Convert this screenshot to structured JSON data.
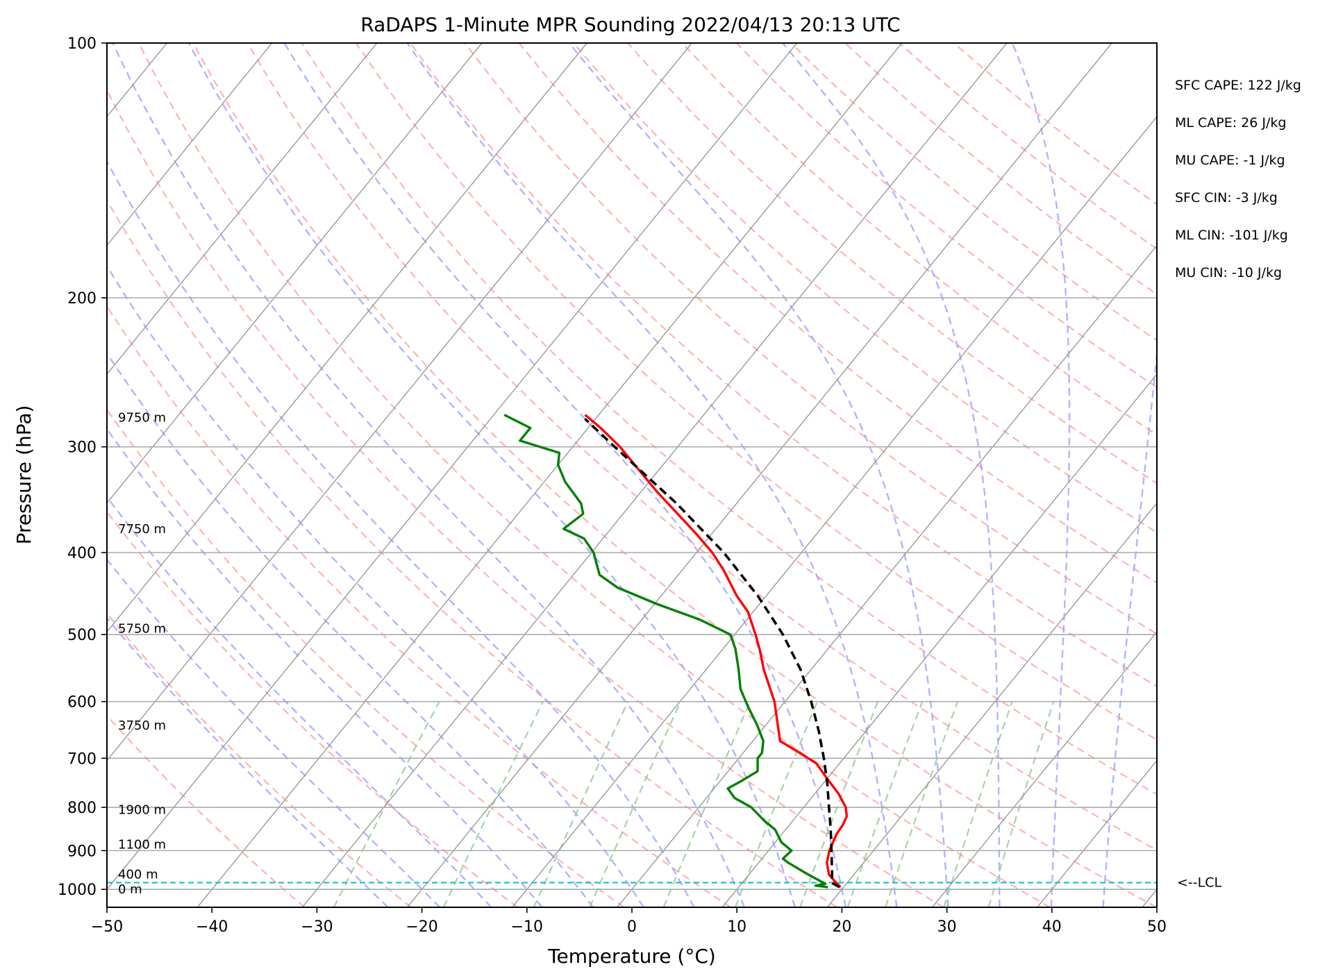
{
  "chart_data": {
    "type": "line",
    "subtype": "skew-t log-p sounding",
    "title": "RaDAPS 1-Minute MPR Sounding 2022/04/13 20:13 UTC",
    "xlabel": "Temperature (°C)",
    "ylabel": "Pressure (hPa)",
    "xlim": [
      -50,
      50
    ],
    "ylim": [
      1050,
      100
    ],
    "y_scale": "log",
    "x_ticks": [
      -50,
      -40,
      -30,
      -20,
      -10,
      0,
      10,
      20,
      30,
      40,
      50
    ],
    "x_tick_labels": [
      "−50",
      "−40",
      "−30",
      "−20",
      "−10",
      "0",
      "10",
      "20",
      "30",
      "40",
      "50"
    ],
    "y_ticks": [
      100,
      200,
      300,
      400,
      500,
      600,
      700,
      800,
      900,
      1000
    ],
    "y_tick_labels": [
      "100",
      "200",
      "300",
      "400",
      "500",
      "600",
      "700",
      "800",
      "900",
      "1000"
    ],
    "grid": true,
    "height_labels": [
      {
        "text": "9750 m",
        "p": 277
      },
      {
        "text": "7750 m",
        "p": 375
      },
      {
        "text": "5750 m",
        "p": 492
      },
      {
        "text": "3750 m",
        "p": 640
      },
      {
        "text": "1900 m",
        "p": 805
      },
      {
        "text": "1100 m",
        "p": 885
      },
      {
        "text": "400 m",
        "p": 960
      },
      {
        "text": "0 m",
        "p": 1000
      }
    ],
    "stats": [
      "SFC CAPE: 122 J/kg",
      "ML CAPE: 26 J/kg",
      "MU CAPE: -1 J/kg",
      "SFC CIN: -3 J/kg",
      "ML CIN: -101 J/kg",
      "MU CIN: -10 J/kg"
    ],
    "lcl": {
      "label": "<--LCL",
      "p": 982,
      "color": "#00bfbf"
    },
    "series": [
      {
        "color": "#ff0000",
        "points": [
          {
            "p": 994,
            "t": 19.7
          },
          {
            "p": 980,
            "t": 18.8
          },
          {
            "p": 960,
            "t": 17.6
          },
          {
            "p": 930,
            "t": 16.5
          },
          {
            "p": 900,
            "t": 15.8
          },
          {
            "p": 860,
            "t": 15.2
          },
          {
            "p": 840,
            "t": 15.1
          },
          {
            "p": 820,
            "t": 14.8
          },
          {
            "p": 800,
            "t": 14.0
          },
          {
            "p": 770,
            "t": 12.2
          },
          {
            "p": 740,
            "t": 10.0
          },
          {
            "p": 710,
            "t": 7.8
          },
          {
            "p": 690,
            "t": 5.4
          },
          {
            "p": 668,
            "t": 2.6
          },
          {
            "p": 600,
            "t": -1.0
          },
          {
            "p": 550,
            "t": -4.5
          },
          {
            "p": 520,
            "t": -6.5
          },
          {
            "p": 500,
            "t": -8.0
          },
          {
            "p": 470,
            "t": -10.5
          },
          {
            "p": 450,
            "t": -12.8
          },
          {
            "p": 420,
            "t": -16.0
          },
          {
            "p": 400,
            "t": -18.5
          },
          {
            "p": 380,
            "t": -21.5
          },
          {
            "p": 360,
            "t": -24.8
          },
          {
            "p": 340,
            "t": -28.3
          },
          {
            "p": 320,
            "t": -31.8
          },
          {
            "p": 300,
            "t": -35.5
          },
          {
            "p": 285,
            "t": -38.8
          },
          {
            "p": 275,
            "t": -41.3
          }
        ]
      },
      {
        "color": "#008000",
        "points": [
          {
            "p": 994,
            "t": 18.5
          },
          {
            "p": 990,
            "t": 17.2
          },
          {
            "p": 985,
            "t": 18.0
          },
          {
            "p": 960,
            "t": 15.6
          },
          {
            "p": 930,
            "t": 12.8
          },
          {
            "p": 920,
            "t": 12.0
          },
          {
            "p": 900,
            "t": 12.2
          },
          {
            "p": 880,
            "t": 10.6
          },
          {
            "p": 850,
            "t": 9.0
          },
          {
            "p": 830,
            "t": 7.3
          },
          {
            "p": 800,
            "t": 5.0
          },
          {
            "p": 780,
            "t": 2.7
          },
          {
            "p": 760,
            "t": 1.3
          },
          {
            "p": 745,
            "t": 2.0
          },
          {
            "p": 725,
            "t": 2.8
          },
          {
            "p": 700,
            "t": 1.8
          },
          {
            "p": 690,
            "t": 1.8
          },
          {
            "p": 668,
            "t": 1.0
          },
          {
            "p": 640,
            "t": -0.8
          },
          {
            "p": 610,
            "t": -3.0
          },
          {
            "p": 580,
            "t": -5.2
          },
          {
            "p": 550,
            "t": -6.9
          },
          {
            "p": 520,
            "t": -8.8
          },
          {
            "p": 500,
            "t": -10.4
          },
          {
            "p": 480,
            "t": -14.5
          },
          {
            "p": 460,
            "t": -19.8
          },
          {
            "p": 440,
            "t": -24.8
          },
          {
            "p": 425,
            "t": -27.5
          },
          {
            "p": 400,
            "t": -29.8
          },
          {
            "p": 385,
            "t": -31.8
          },
          {
            "p": 375,
            "t": -34.5
          },
          {
            "p": 360,
            "t": -33.8
          },
          {
            "p": 350,
            "t": -34.8
          },
          {
            "p": 330,
            "t": -38.0
          },
          {
            "p": 315,
            "t": -40.0
          },
          {
            "p": 305,
            "t": -40.8
          },
          {
            "p": 295,
            "t": -45.5
          },
          {
            "p": 285,
            "t": -45.5
          },
          {
            "p": 275,
            "t": -49.0
          }
        ]
      },
      {
        "color": "#000000",
        "dashed": true,
        "points": [
          {
            "p": 994,
            "t": 19.6
          },
          {
            "p": 982,
            "t": 18.5
          },
          {
            "p": 960,
            "t": 17.9
          },
          {
            "p": 900,
            "t": 16.0
          },
          {
            "p": 850,
            "t": 14.3
          },
          {
            "p": 800,
            "t": 12.4
          },
          {
            "p": 750,
            "t": 10.4
          },
          {
            "p": 700,
            "t": 8.1
          },
          {
            "p": 650,
            "t": 5.5
          },
          {
            "p": 600,
            "t": 2.5
          },
          {
            "p": 550,
            "t": -1.0
          },
          {
            "p": 500,
            "t": -5.4
          },
          {
            "p": 450,
            "t": -10.8
          },
          {
            "p": 400,
            "t": -17.4
          },
          {
            "p": 350,
            "t": -25.7
          },
          {
            "p": 300,
            "t": -36.0
          },
          {
            "p": 278,
            "t": -41.0
          }
        ]
      }
    ],
    "reference_lines": {
      "dry_adiabat_color": "#ff9999",
      "moist_adiabat_color": "#9999ff",
      "mixing_ratio_color": "#90c890",
      "isotherm_color": "#999999"
    }
  }
}
